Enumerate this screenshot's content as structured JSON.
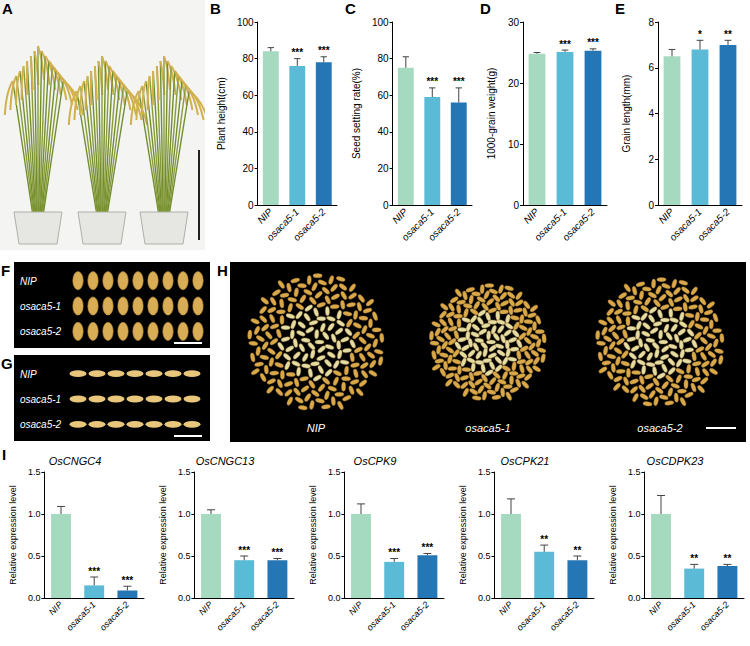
{
  "chart_data": [
    {
      "type": "bar",
      "panel": "B",
      "ylabel": "Plant height(cm)",
      "categories": [
        "NIP",
        "osaca5-1",
        "osaca5-2"
      ],
      "values": [
        84,
        76,
        78
      ],
      "errors": [
        2,
        4,
        3
      ],
      "significance": [
        null,
        "***",
        "***"
      ],
      "colors": [
        "#a6dac0",
        "#5bbad5",
        "#2476b5"
      ],
      "ylim": [
        0,
        100
      ],
      "yticks": [
        0,
        20,
        40,
        60,
        80,
        100
      ],
      "grid": false
    },
    {
      "type": "bar",
      "panel": "C",
      "ylabel": "Seed setting rate(%)",
      "categories": [
        "NIP",
        "osaca5-1",
        "osaca5-2"
      ],
      "values": [
        75,
        59,
        56
      ],
      "errors": [
        6,
        5,
        8
      ],
      "significance": [
        null,
        "***",
        "***"
      ],
      "colors": [
        "#a6dac0",
        "#5bbad5",
        "#2476b5"
      ],
      "ylim": [
        0,
        100
      ],
      "yticks": [
        0,
        20,
        40,
        60,
        80,
        100
      ],
      "grid": false
    },
    {
      "type": "bar",
      "panel": "D",
      "ylabel": "1000-grain weight(g)",
      "categories": [
        "NIP",
        "osaca5-1",
        "osaca5-2"
      ],
      "values": [
        24.8,
        25.1,
        25.3
      ],
      "errors": [
        0.2,
        0.3,
        0.3
      ],
      "significance": [
        null,
        "***",
        "***"
      ],
      "colors": [
        "#a6dac0",
        "#5bbad5",
        "#2476b5"
      ],
      "ylim": [
        0,
        30
      ],
      "yticks": [
        0,
        10,
        20,
        30
      ],
      "grid": false
    },
    {
      "type": "bar",
      "panel": "E",
      "ylabel": "Grain length(mm)",
      "categories": [
        "NIP",
        "osaca5-1",
        "osaca5-2"
      ],
      "values": [
        6.5,
        6.8,
        7.0
      ],
      "errors": [
        0.3,
        0.4,
        0.2
      ],
      "significance": [
        null,
        "*",
        "**"
      ],
      "colors": [
        "#a6dac0",
        "#5bbad5",
        "#2476b5"
      ],
      "ylim": [
        0,
        8
      ],
      "yticks": [
        0,
        2,
        4,
        6,
        8
      ],
      "grid": false
    },
    {
      "type": "bar",
      "panel": "I",
      "title": "OsCNGC4",
      "ylabel": "Relative expression level",
      "categories": [
        "NIP",
        "osaca5-1",
        "osaca5-2"
      ],
      "values": [
        1.0,
        0.15,
        0.09
      ],
      "errors": [
        0.09,
        0.1,
        0.05
      ],
      "significance": [
        null,
        "***",
        "***"
      ],
      "colors": [
        "#a6dac0",
        "#5bbad5",
        "#2476b5"
      ],
      "ylim": [
        0,
        1.5
      ],
      "yticks": [
        {
          "value": 0,
          "label": "0.0"
        },
        {
          "value": 0.5,
          "label": "0.5"
        },
        {
          "value": 1,
          "label": "1.0"
        },
        {
          "value": 1.5,
          "label": "1.5"
        }
      ],
      "grid": false
    },
    {
      "type": "bar",
      "title": "OsCNGC13",
      "ylabel": "Relative expression level",
      "categories": [
        "NIP",
        "osaca5-1",
        "osaca5-2"
      ],
      "values": [
        1.0,
        0.45,
        0.45
      ],
      "errors": [
        0.05,
        0.05,
        0.02
      ],
      "significance": [
        null,
        "***",
        "***"
      ],
      "colors": [
        "#a6dac0",
        "#5bbad5",
        "#2476b5"
      ],
      "ylim": [
        0,
        1.5
      ],
      "yticks": [
        {
          "value": 0,
          "label": "0.0"
        },
        {
          "value": 0.5,
          "label": "0.5"
        },
        {
          "value": 1,
          "label": "1.0"
        },
        {
          "value": 1.5,
          "label": "1.5"
        }
      ],
      "grid": false
    },
    {
      "type": "bar",
      "title": "OsCPK9",
      "ylabel": "Relative expression level",
      "categories": [
        "NIP",
        "osaca5-1",
        "osaca5-2"
      ],
      "values": [
        1.0,
        0.43,
        0.51
      ],
      "errors": [
        0.12,
        0.04,
        0.02
      ],
      "significance": [
        null,
        "***",
        "***"
      ],
      "colors": [
        "#a6dac0",
        "#5bbad5",
        "#2476b5"
      ],
      "ylim": [
        0,
        1.5
      ],
      "yticks": [
        {
          "value": 0,
          "label": "0.0"
        },
        {
          "value": 0.5,
          "label": "0.5"
        },
        {
          "value": 1,
          "label": "1.0"
        },
        {
          "value": 1.5,
          "label": "1.5"
        }
      ],
      "grid": false
    },
    {
      "type": "bar",
      "title": "OsCPK21",
      "ylabel": "Relative expression level",
      "categories": [
        "NIP",
        "osaca5-1",
        "osaca5-2"
      ],
      "values": [
        1.0,
        0.55,
        0.45
      ],
      "errors": [
        0.18,
        0.08,
        0.05
      ],
      "significance": [
        null,
        "**",
        "**"
      ],
      "colors": [
        "#a6dac0",
        "#5bbad5",
        "#2476b5"
      ],
      "ylim": [
        0,
        1.5
      ],
      "yticks": [
        {
          "value": 0,
          "label": "0.0"
        },
        {
          "value": 0.5,
          "label": "0.5"
        },
        {
          "value": 1,
          "label": "1.0"
        },
        {
          "value": 1.5,
          "label": "1.5"
        }
      ],
      "grid": false
    },
    {
      "type": "bar",
      "title": "OsCDPK23",
      "ylabel": "Relative expression level",
      "categories": [
        "NIP",
        "osaca5-1",
        "osaca5-2"
      ],
      "values": [
        1.0,
        0.35,
        0.38
      ],
      "errors": [
        0.22,
        0.05,
        0.02
      ],
      "significance": [
        null,
        "**",
        "**"
      ],
      "colors": [
        "#a6dac0",
        "#5bbad5",
        "#2476b5"
      ],
      "ylim": [
        0,
        1.5
      ],
      "yticks": [
        {
          "value": 0,
          "label": "0.0"
        },
        {
          "value": 0.5,
          "label": "0.5"
        },
        {
          "value": 1,
          "label": "1.0"
        },
        {
          "value": 1.5,
          "label": "1.5"
        }
      ],
      "grid": false
    }
  ],
  "photo_panels": [
    {
      "panel": "A"
    },
    {
      "panel": "F",
      "labels": [
        "NIP",
        "osaca5-1",
        "osaca5-2"
      ]
    },
    {
      "panel": "G",
      "labels": [
        "NIP",
        "osaca5-1",
        "osaca5-2"
      ]
    },
    {
      "panel": "H",
      "labels": [
        "NIP",
        "osaca5-1",
        "osaca5-2"
      ]
    }
  ]
}
